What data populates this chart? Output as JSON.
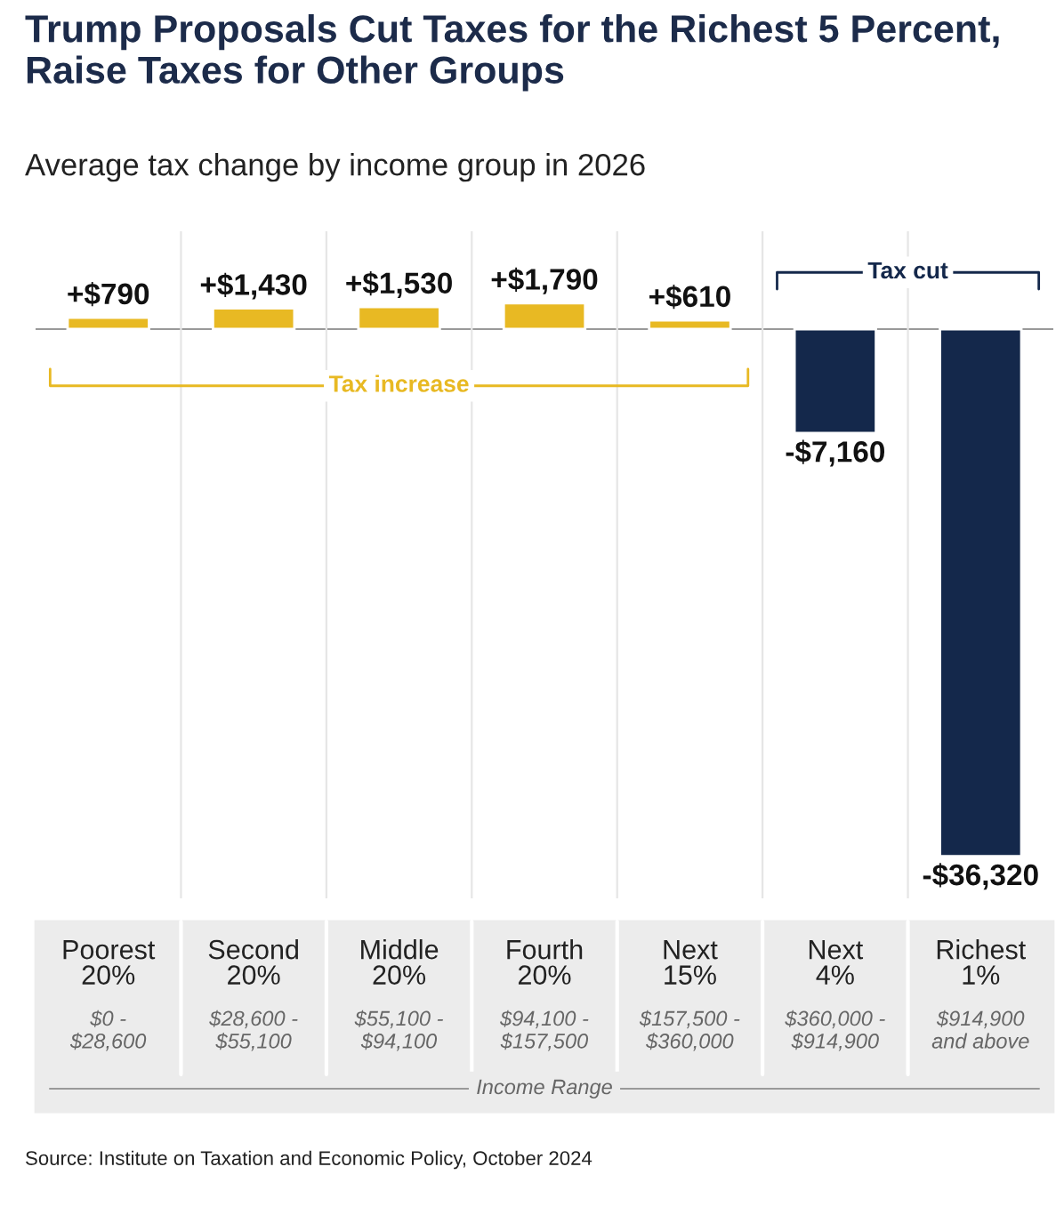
{
  "chart_data": {
    "type": "bar",
    "title": "Trump Proposals Cut Taxes for the Richest 5 Percent, Raise Taxes for Other Groups",
    "subtitle": "Average tax change by income group in 2026",
    "categories": [
      "Poorest\n20%",
      "Second\n20%",
      "Middle\n20%",
      "Fourth\n20%",
      "Next\n15%",
      "Next\n4%",
      "Richest\n1%"
    ],
    "values": [
      790,
      1430,
      1530,
      1790,
      610,
      -7160,
      -36320
    ],
    "colors": [
      "#e8b923",
      "#e8b923",
      "#e8b923",
      "#e8b923",
      "#e8b923",
      "#14284b",
      "#14284b"
    ],
    "value_labels": [
      "+$790",
      "+$1,430",
      "+$1,530",
      "+$1,790",
      "+$610",
      "-$7,160",
      "-$36,320"
    ],
    "annotations": [
      "Tax increase",
      "Tax cut",
      "$0 -\n$28,600",
      "$28,600 -\n$55,100",
      "$55,100 -\n$94,100",
      "$94,100 -\n$157,500",
      "$157,500 -\n$360,000",
      "$360,000 -\n$914,900",
      "$914,900\nand above",
      "Income Range",
      "Source: Institute on Taxation and Economic Policy, October 2024"
    ]
  }
}
